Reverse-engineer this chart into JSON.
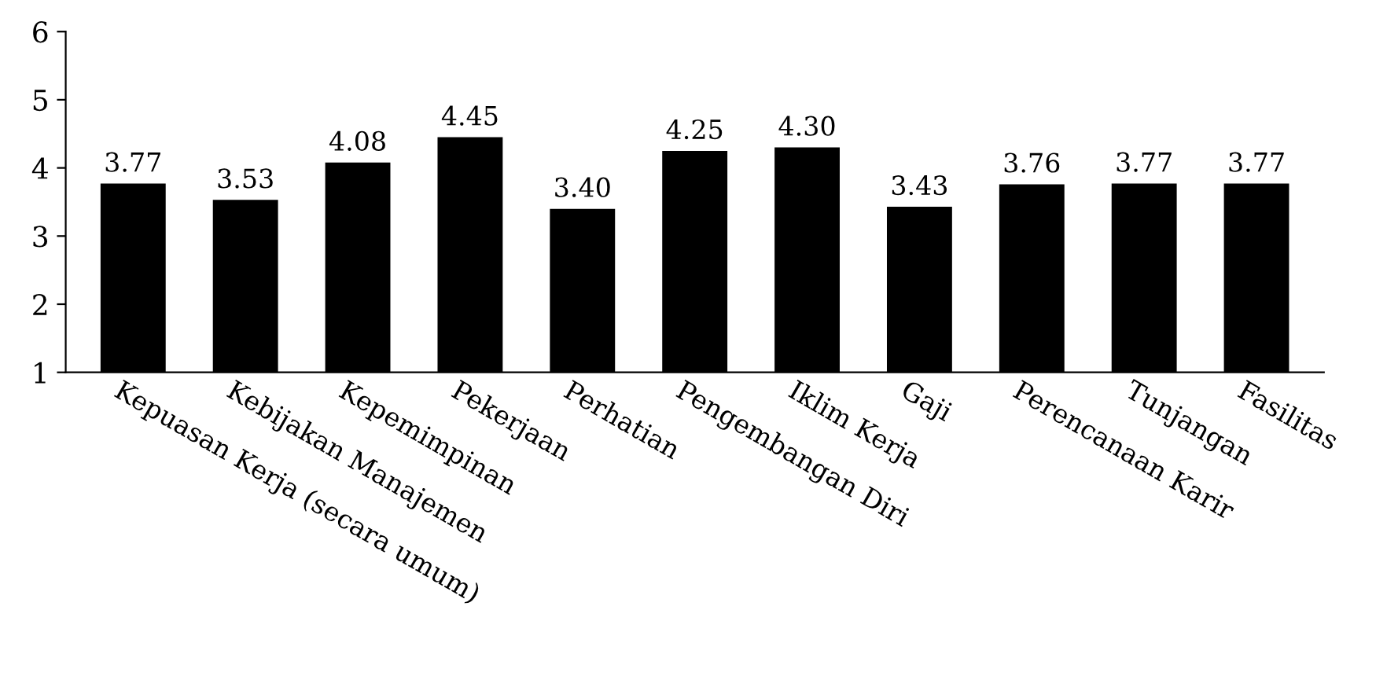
{
  "chart_data": {
    "type": "bar",
    "categories": [
      "Kepuasan Kerja (secara umum)",
      "Kebijakan Manajemen",
      "Kepemimpinan",
      "Pekerjaan",
      "Perhatian",
      "Pengembangan Diri",
      "Iklim Kerja",
      "Gaji",
      "Perencanaan Karir",
      "Tunjangan",
      "Fasilitas"
    ],
    "values": [
      3.77,
      3.53,
      4.08,
      4.45,
      3.4,
      4.25,
      4.3,
      3.43,
      3.76,
      3.77,
      3.77
    ],
    "value_labels": [
      "3.77",
      "3.53",
      "4.08",
      "4.45",
      "3.40",
      "4.25",
      "4.30",
      "3.43",
      "3.76",
      "3.77",
      "3.77"
    ],
    "color": "#000000",
    "ylim": [
      1,
      6
    ],
    "yticks": [
      1,
      2,
      3,
      4,
      5,
      6
    ],
    "grid": false,
    "legend": false
  }
}
